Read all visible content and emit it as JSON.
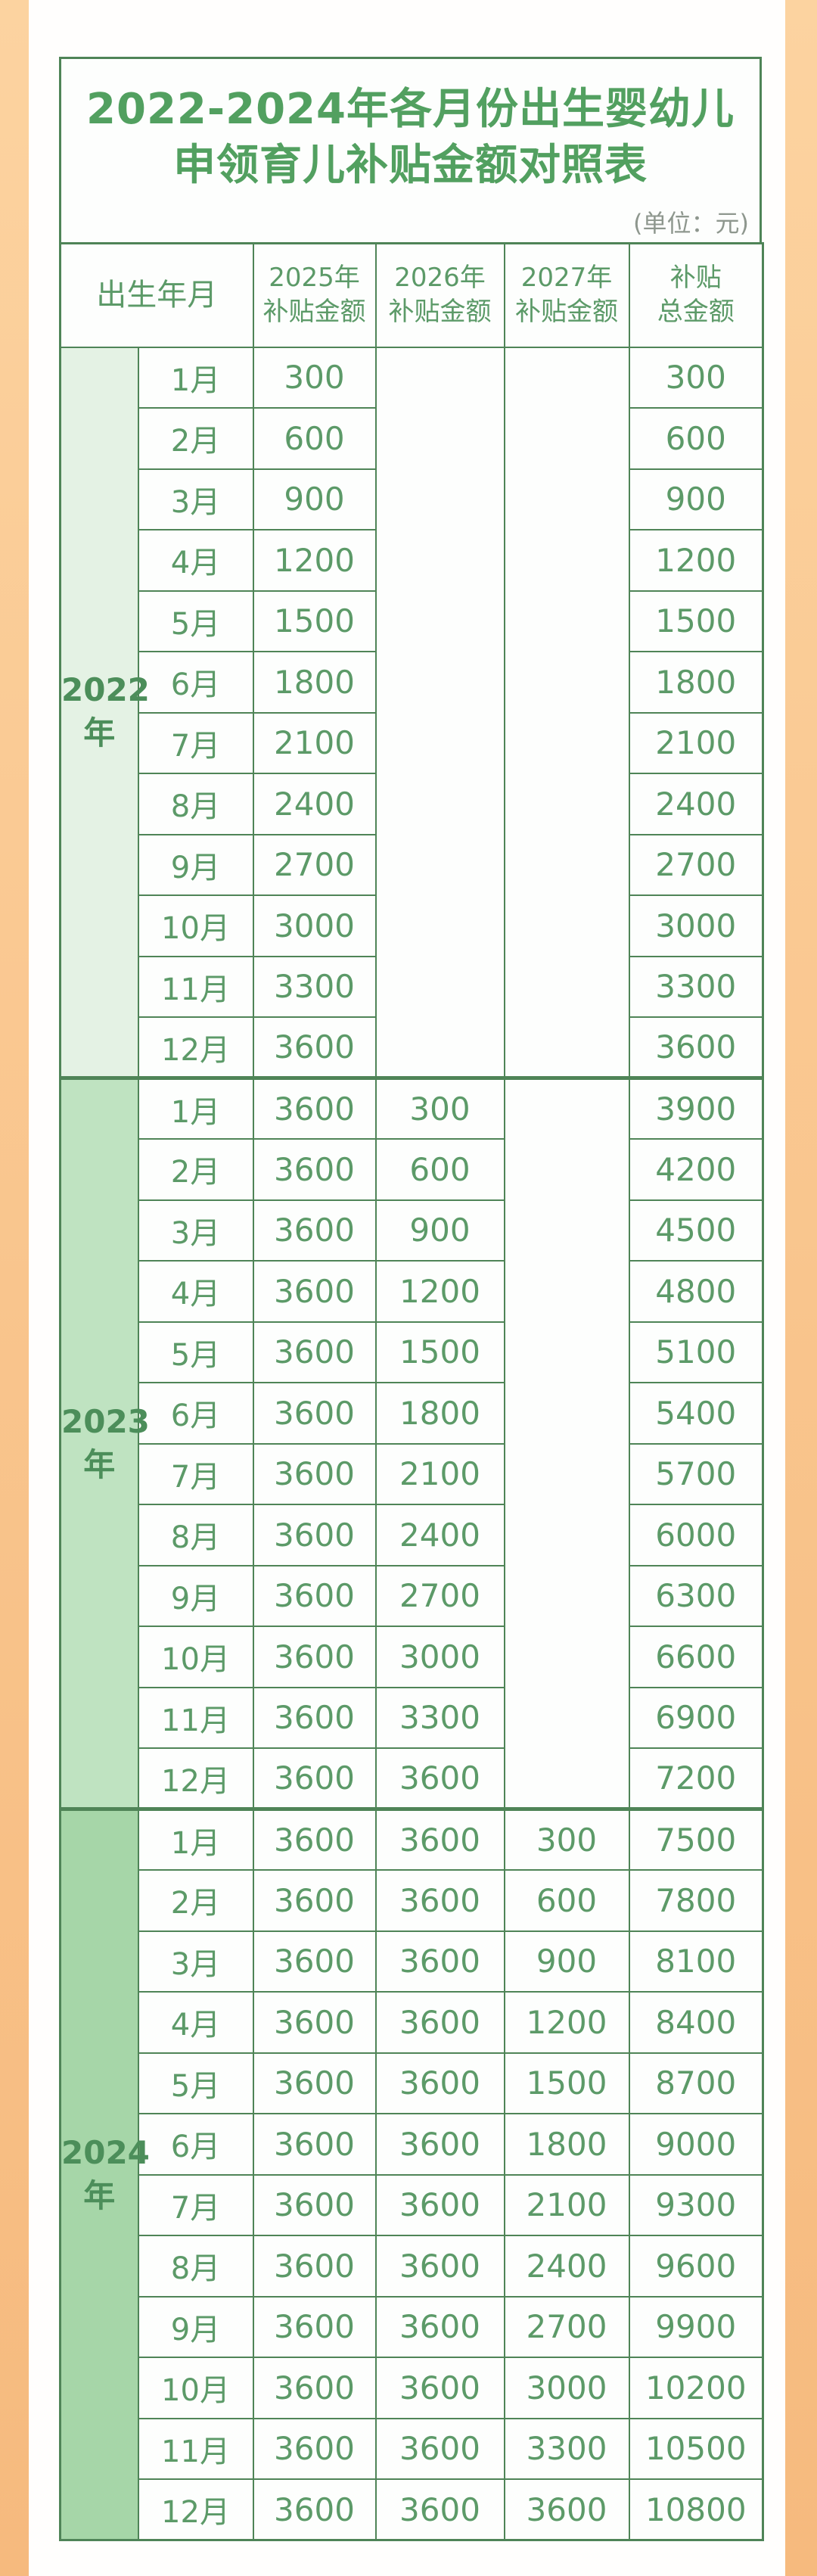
{
  "title": {
    "line1": "2022-2024年各月份出生婴幼儿",
    "line2": "申领育儿补贴金额对照表"
  },
  "meta": {
    "unit_label": "(单位：元)"
  },
  "header": {
    "birth_month": "出生年月",
    "col_2025": "2025年\n补贴金额",
    "col_2026": "2026年\n补贴金额",
    "col_2027": "2027年\n补贴金额",
    "col_total": "补贴\n总金额"
  },
  "colors": {
    "border_green": "#4f8457",
    "title_green": "#52a060",
    "text_green": "#5c9a68",
    "background_peach_top": "#fcd3a0",
    "background_peach_bottom": "#f6ba7e",
    "card_white": "#fffefd",
    "year_2022_bg": "#e4f2e4",
    "year_2023_bg": "#bfe3c1",
    "year_2024_bg": "#a6d6a8"
  },
  "chart_data": {
    "type": "table",
    "title": "2022-2024年各月份出生婴幼儿申领育儿补贴金额对照表",
    "unit": "元",
    "columns": [
      "出生年月",
      "2025年补贴金额",
      "2026年补贴金额",
      "2027年补贴金额",
      "补贴总金额"
    ],
    "sections": [
      {
        "year": "2022年",
        "year_label": "2022\n年",
        "bg": "#e4f2e4",
        "empty_cols": [
          "y2026",
          "y2027"
        ],
        "rows": [
          {
            "month": "1月",
            "y2025": "300",
            "y2026": "",
            "y2027": "",
            "total": "300"
          },
          {
            "month": "2月",
            "y2025": "600",
            "y2026": "",
            "y2027": "",
            "total": "600"
          },
          {
            "month": "3月",
            "y2025": "900",
            "y2026": "",
            "y2027": "",
            "total": "900"
          },
          {
            "month": "4月",
            "y2025": "1200",
            "y2026": "",
            "y2027": "",
            "total": "1200"
          },
          {
            "month": "5月",
            "y2025": "1500",
            "y2026": "",
            "y2027": "",
            "total": "1500"
          },
          {
            "month": "6月",
            "y2025": "1800",
            "y2026": "",
            "y2027": "",
            "total": "1800"
          },
          {
            "month": "7月",
            "y2025": "2100",
            "y2026": "",
            "y2027": "",
            "total": "2100"
          },
          {
            "month": "8月",
            "y2025": "2400",
            "y2026": "",
            "y2027": "",
            "total": "2400"
          },
          {
            "month": "9月",
            "y2025": "2700",
            "y2026": "",
            "y2027": "",
            "total": "2700"
          },
          {
            "month": "10月",
            "y2025": "3000",
            "y2026": "",
            "y2027": "",
            "total": "3000"
          },
          {
            "month": "11月",
            "y2025": "3300",
            "y2026": "",
            "y2027": "",
            "total": "3300"
          },
          {
            "month": "12月",
            "y2025": "3600",
            "y2026": "",
            "y2027": "",
            "total": "3600"
          }
        ]
      },
      {
        "year": "2023年",
        "year_label": "2023\n年",
        "bg": "#bfe3c1",
        "empty_cols": [
          "y2027"
        ],
        "rows": [
          {
            "month": "1月",
            "y2025": "3600",
            "y2026": "300",
            "y2027": "",
            "total": "3900"
          },
          {
            "month": "2月",
            "y2025": "3600",
            "y2026": "600",
            "y2027": "",
            "total": "4200"
          },
          {
            "month": "3月",
            "y2025": "3600",
            "y2026": "900",
            "y2027": "",
            "total": "4500"
          },
          {
            "month": "4月",
            "y2025": "3600",
            "y2026": "1200",
            "y2027": "",
            "total": "4800"
          },
          {
            "month": "5月",
            "y2025": "3600",
            "y2026": "1500",
            "y2027": "",
            "total": "5100"
          },
          {
            "month": "6月",
            "y2025": "3600",
            "y2026": "1800",
            "y2027": "",
            "total": "5400"
          },
          {
            "month": "7月",
            "y2025": "3600",
            "y2026": "2100",
            "y2027": "",
            "total": "5700"
          },
          {
            "month": "8月",
            "y2025": "3600",
            "y2026": "2400",
            "y2027": "",
            "total": "6000"
          },
          {
            "month": "9月",
            "y2025": "3600",
            "y2026": "2700",
            "y2027": "",
            "total": "6300"
          },
          {
            "month": "10月",
            "y2025": "3600",
            "y2026": "3000",
            "y2027": "",
            "total": "6600"
          },
          {
            "month": "11月",
            "y2025": "3600",
            "y2026": "3300",
            "y2027": "",
            "total": "6900"
          },
          {
            "month": "12月",
            "y2025": "3600",
            "y2026": "3600",
            "y2027": "",
            "total": "7200"
          }
        ]
      },
      {
        "year": "2024年",
        "year_label": "2024\n年",
        "bg": "#a6d6a8",
        "empty_cols": [],
        "rows": [
          {
            "month": "1月",
            "y2025": "3600",
            "y2026": "3600",
            "y2027": "300",
            "total": "7500"
          },
          {
            "month": "2月",
            "y2025": "3600",
            "y2026": "3600",
            "y2027": "600",
            "total": "7800"
          },
          {
            "month": "3月",
            "y2025": "3600",
            "y2026": "3600",
            "y2027": "900",
            "total": "8100"
          },
          {
            "month": "4月",
            "y2025": "3600",
            "y2026": "3600",
            "y2027": "1200",
            "total": "8400"
          },
          {
            "month": "5月",
            "y2025": "3600",
            "y2026": "3600",
            "y2027": "1500",
            "total": "8700"
          },
          {
            "month": "6月",
            "y2025": "3600",
            "y2026": "3600",
            "y2027": "1800",
            "total": "9000"
          },
          {
            "month": "7月",
            "y2025": "3600",
            "y2026": "3600",
            "y2027": "2100",
            "total": "9300"
          },
          {
            "month": "8月",
            "y2025": "3600",
            "y2026": "3600",
            "y2027": "2400",
            "total": "9600"
          },
          {
            "month": "9月",
            "y2025": "3600",
            "y2026": "3600",
            "y2027": "2700",
            "total": "9900"
          },
          {
            "month": "10月",
            "y2025": "3600",
            "y2026": "3600",
            "y2027": "3000",
            "total": "10200"
          },
          {
            "month": "11月",
            "y2025": "3600",
            "y2026": "3600",
            "y2027": "3300",
            "total": "10500"
          },
          {
            "month": "12月",
            "y2025": "3600",
            "y2026": "3600",
            "y2027": "3600",
            "total": "10800"
          }
        ]
      }
    ]
  }
}
